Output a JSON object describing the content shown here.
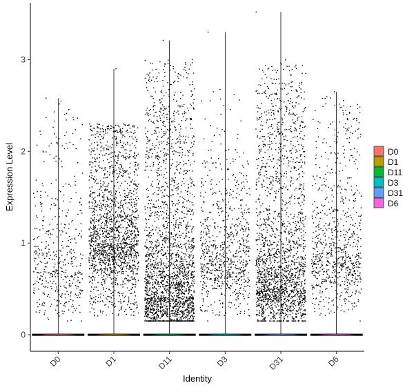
{
  "chart_data": {
    "type": "violin-jitter",
    "title": "",
    "xlabel": "Identity",
    "ylabel": "Expression Level",
    "categories": [
      "D0",
      "D1",
      "D11",
      "D3",
      "D31",
      "D6"
    ],
    "ylim": [
      -0.18,
      3.62
    ],
    "yticks": [
      0,
      1,
      2,
      3
    ],
    "series": [
      {
        "name": "D0",
        "color": "#F8766D",
        "max": 2.58,
        "zero_fraction": 0.93,
        "points_above_zero": 480,
        "typical_max": 2.55,
        "dense_upper": 2.1,
        "density_peak": 0.7
      },
      {
        "name": "D1",
        "color": "#B79F00",
        "max": 2.9,
        "zero_fraction": 0.77,
        "points_above_zero": 1800,
        "typical_max": 2.3,
        "dense_upper": 2.2,
        "density_peak": 1.0
      },
      {
        "name": "D11",
        "color": "#00BA38",
        "max": 3.21,
        "zero_fraction": 0.72,
        "points_above_zero": 2300,
        "typical_max": 3.0,
        "dense_upper": 2.5,
        "density_peak": 0.4
      },
      {
        "name": "D3",
        "color": "#00BFC4",
        "max": 3.3,
        "zero_fraction": 0.86,
        "points_above_zero": 800,
        "typical_max": 2.7,
        "dense_upper": 1.9,
        "density_peak": 0.8
      },
      {
        "name": "D31",
        "color": "#619CFF",
        "max": 3.52,
        "zero_fraction": 0.77,
        "points_above_zero": 2000,
        "typical_max": 3.0,
        "dense_upper": 2.5,
        "density_peak": 0.5
      },
      {
        "name": "D6",
        "color": "#F564E3",
        "max": 2.65,
        "zero_fraction": 0.86,
        "points_above_zero": 800,
        "typical_max": 2.6,
        "dense_upper": 2.3,
        "density_peak": 0.8
      }
    ],
    "legend": {
      "position": "right"
    },
    "grid": false,
    "x_tick_rotation": 45
  }
}
